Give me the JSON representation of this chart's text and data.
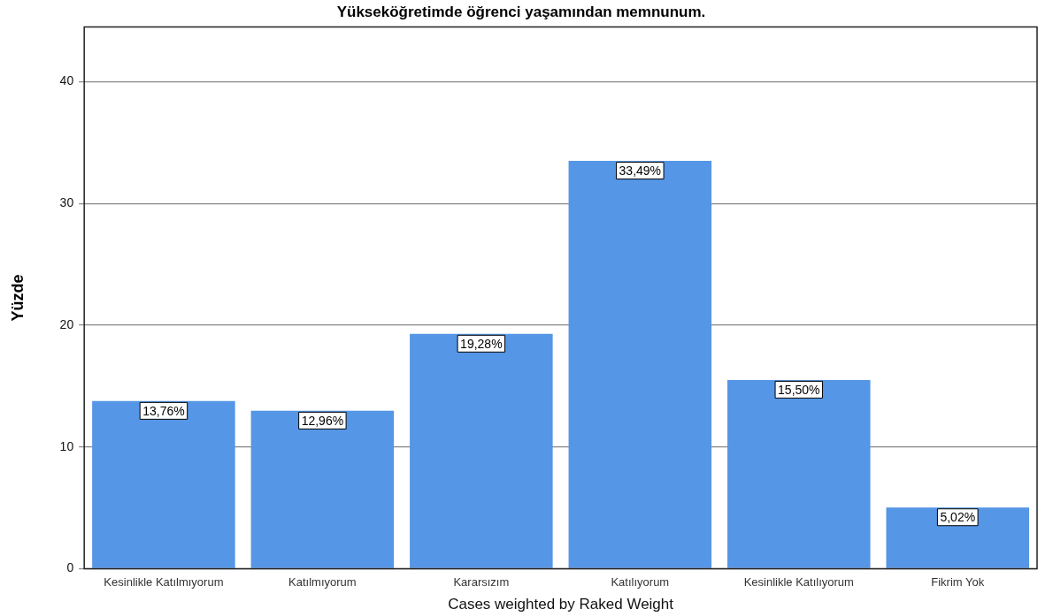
{
  "chart_data": {
    "type": "bar",
    "title": "Yükseköğretimde öğrenci yaşamından memnunum.",
    "ylabel": "Yüzde",
    "categories": [
      "Kesinlikle Katılmıyorum",
      "Katılmıyorum",
      "Kararsızım",
      "Katılıyorum",
      "Kesinlikle Katılıyorum",
      "Fikrim Yok"
    ],
    "values": [
      13.76,
      12.96,
      19.28,
      33.49,
      15.5,
      5.02
    ],
    "value_labels": [
      "13,76%",
      "12,96%",
      "19,28%",
      "33,49%",
      "15,50%",
      "5,02%"
    ],
    "color": "#5596e6",
    "ylim": [
      0,
      44.5
    ],
    "yticks": [
      0,
      10,
      20,
      30,
      40
    ],
    "grid": "y",
    "annotations": [
      "Cases weighted by Raked Weight"
    ]
  }
}
